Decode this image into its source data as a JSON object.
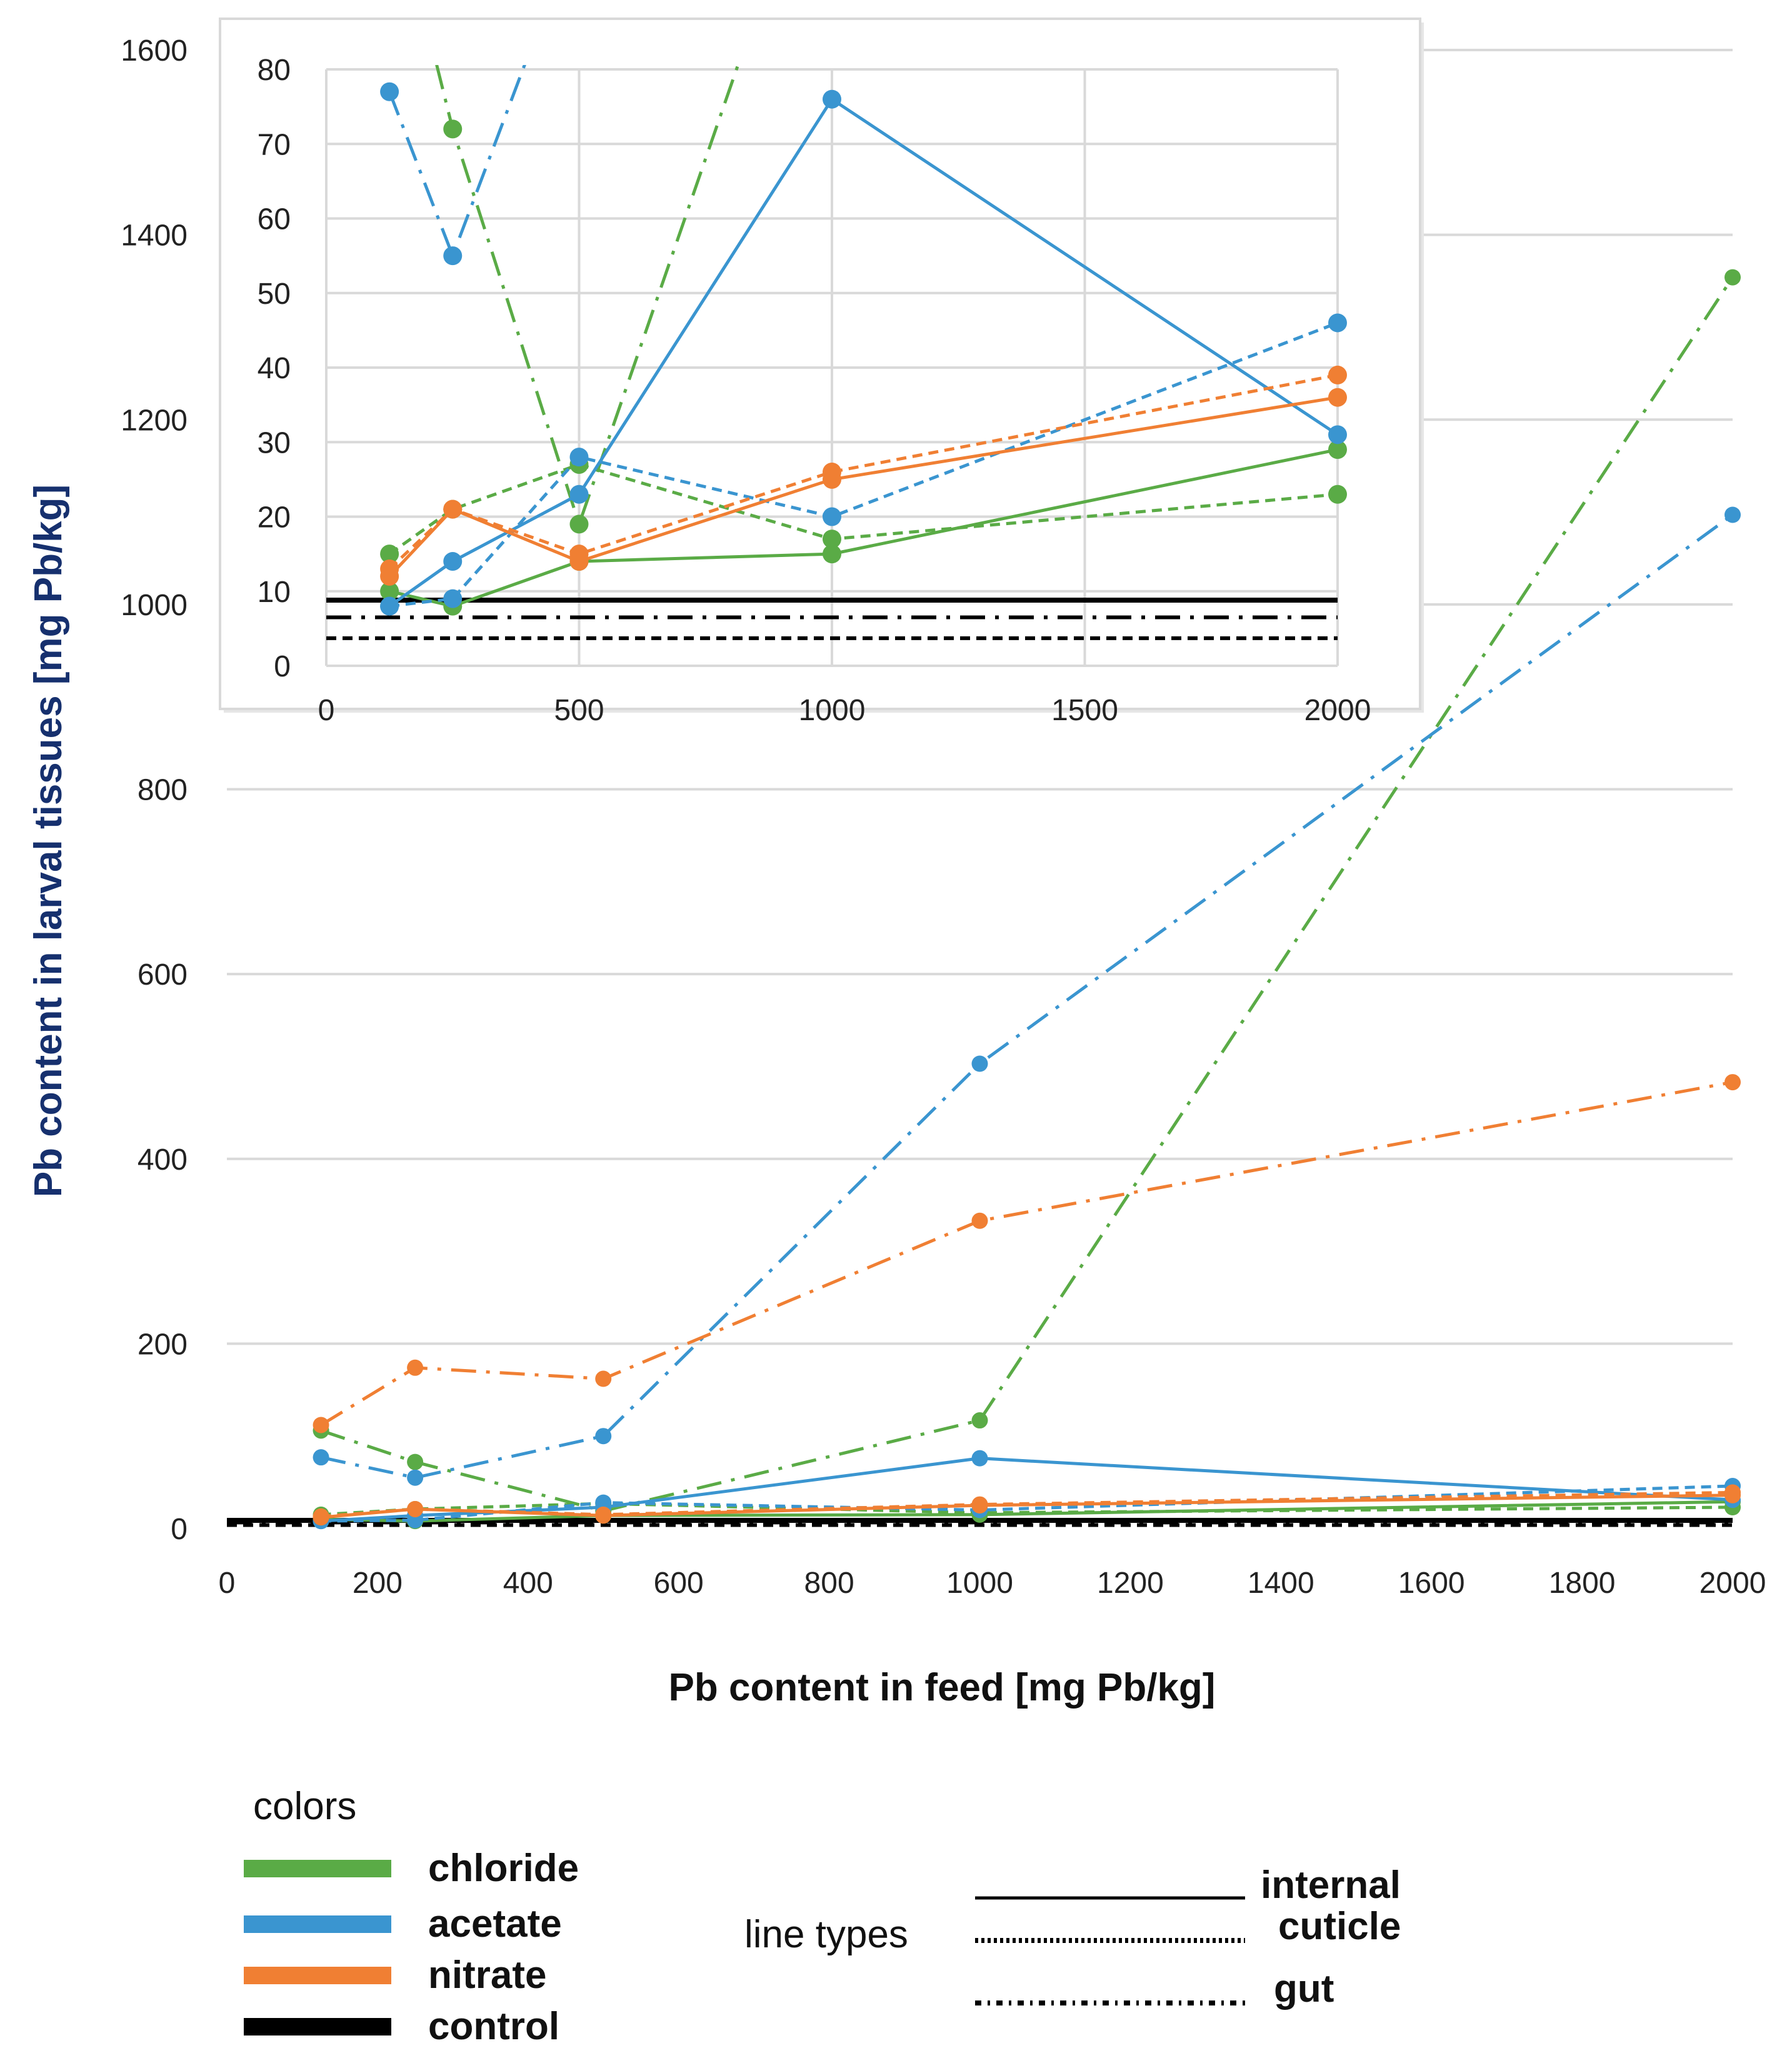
{
  "chart_data": {
    "type": "line",
    "xlabel": "Pb content in feed [mg Pb/kg]",
    "ylabel": "Pb content in larval tissues [mg Pb/kg]",
    "x": [
      125,
      250,
      500,
      1000,
      2000
    ],
    "xlim": [
      0,
      2000
    ],
    "ylim": [
      0,
      1600
    ],
    "xticks": [
      0,
      200,
      400,
      600,
      800,
      1000,
      1200,
      1400,
      1600,
      1800,
      2000
    ],
    "yticks": [
      0,
      200,
      400,
      600,
      800,
      1000,
      1200,
      1400,
      1600
    ],
    "grid": "horizontal",
    "colors": {
      "chloride": "#5aab46",
      "acetate": "#3a95d0",
      "nitrate": "#f07f33",
      "control": "#000000"
    },
    "series": [
      {
        "name": "chloride internal",
        "salt": "chloride",
        "tissue": "internal",
        "values": [
          10,
          8,
          14,
          15,
          29
        ]
      },
      {
        "name": "chloride cuticle",
        "salt": "chloride",
        "tissue": "cuticle",
        "values": [
          15,
          21,
          27,
          17,
          23
        ]
      },
      {
        "name": "chloride gut",
        "salt": "chloride",
        "tissue": "gut",
        "values": [
          106,
          72,
          19,
          117,
          1354
        ]
      },
      {
        "name": "acetate internal",
        "salt": "acetate",
        "tissue": "internal",
        "values": [
          8,
          14,
          23,
          76,
          31
        ]
      },
      {
        "name": "acetate cuticle",
        "salt": "acetate",
        "tissue": "cuticle",
        "values": [
          8,
          9,
          28,
          20,
          46
        ]
      },
      {
        "name": "acetate gut",
        "salt": "acetate",
        "tissue": "gut",
        "values": [
          77,
          55,
          100,
          503,
          1097
        ]
      },
      {
        "name": "nitrate internal",
        "salt": "nitrate",
        "tissue": "internal",
        "values": [
          12,
          21,
          14,
          25,
          36
        ]
      },
      {
        "name": "nitrate cuticle",
        "salt": "nitrate",
        "tissue": "cuticle",
        "values": [
          13,
          21,
          15,
          26,
          39
        ]
      },
      {
        "name": "nitrate gut",
        "salt": "nitrate",
        "tissue": "gut",
        "values": [
          112,
          174,
          162,
          333,
          483
        ]
      }
    ],
    "control": [
      {
        "name": "control internal",
        "tissue": "internal",
        "value": 8.8
      },
      {
        "name": "control gut",
        "tissue": "gut",
        "value": 6.5
      },
      {
        "name": "control cuticle",
        "tissue": "cuticle",
        "value": 3.7
      }
    ],
    "inset": {
      "xlim": [
        0,
        2000
      ],
      "ylim": [
        0,
        80
      ],
      "xticks": [
        0,
        500,
        1000,
        1500,
        2000
      ],
      "yticks": [
        0,
        10,
        20,
        30,
        40,
        50,
        60,
        70,
        80
      ],
      "grid": "both"
    }
  },
  "legend": {
    "colors_title": "colors",
    "colors": [
      {
        "label": "chloride",
        "key": "chloride"
      },
      {
        "label": "acetate",
        "key": "acetate"
      },
      {
        "label": "nitrate",
        "key": "nitrate"
      },
      {
        "label": "control",
        "key": "control"
      }
    ],
    "line_types_title": "line types",
    "line_types": [
      {
        "label": "internal",
        "key": "internal"
      },
      {
        "label": "cuticle",
        "key": "cuticle"
      },
      {
        "label": "gut",
        "key": "gut"
      }
    ]
  }
}
